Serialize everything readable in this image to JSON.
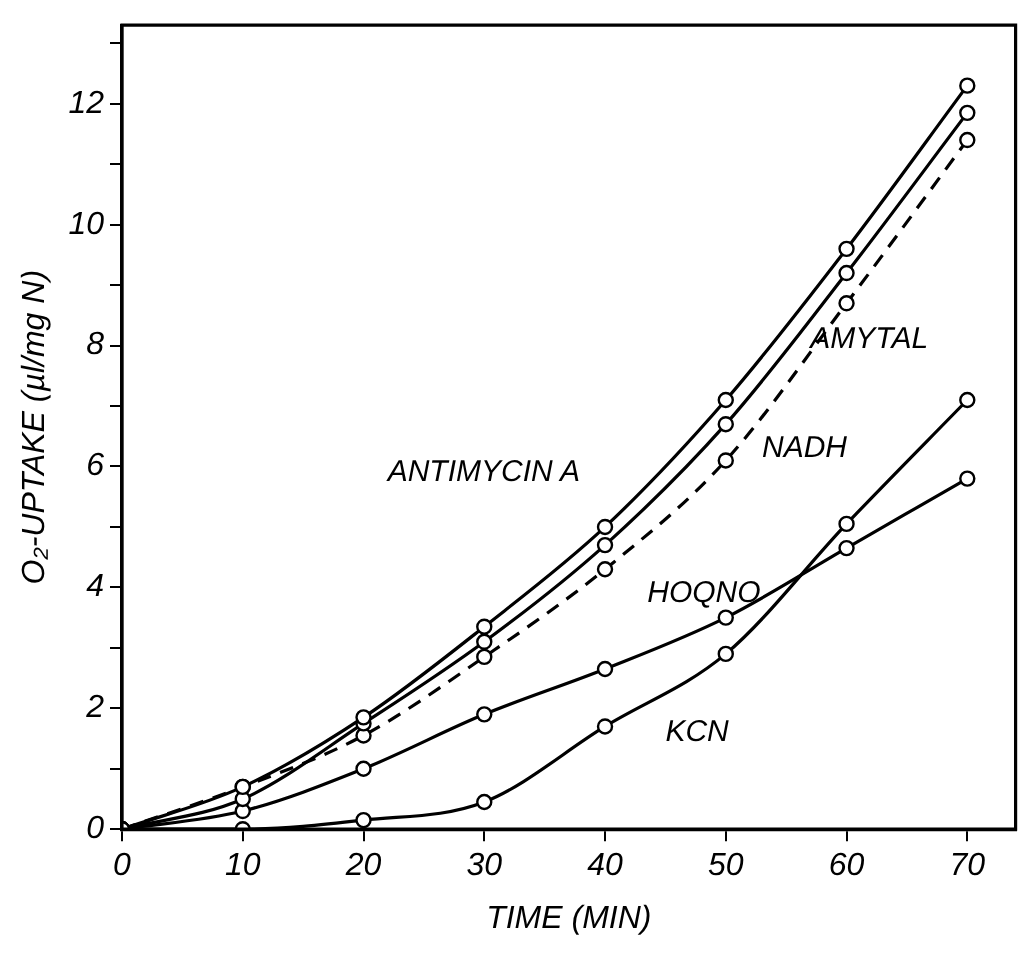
{
  "chart_data": {
    "type": "line",
    "xlabel": "TIME (MIN)",
    "ylabel": "O₂-UPTAKE (µl/mg N)",
    "x": [
      0,
      10,
      20,
      30,
      40,
      50,
      60,
      70
    ],
    "series": [
      {
        "name": "ANTIMYCIN A",
        "color": "#000000",
        "values": [
          0,
          0.7,
          1.85,
          3.35,
          5.0,
          7.1,
          9.6,
          12.3
        ]
      },
      {
        "name": "AMYTAL",
        "color": "#000000",
        "values": [
          0,
          0.5,
          1.75,
          3.1,
          4.7,
          6.7,
          9.2,
          11.85
        ]
      },
      {
        "name": "NADH",
        "color": "#000000",
        "values": [
          0,
          0.7,
          1.55,
          2.85,
          4.3,
          6.1,
          8.7,
          11.4
        ],
        "line_style": "dashed"
      },
      {
        "name": "HOQNO",
        "color": "#000000",
        "values": [
          0,
          0.3,
          1.0,
          1.9,
          2.65,
          3.5,
          4.65,
          5.8
        ]
      },
      {
        "name": "KCN",
        "color": "#000000",
        "values": [
          0,
          0,
          0.15,
          0.45,
          1.7,
          2.9,
          5.05,
          7.1
        ]
      }
    ],
    "xlim": [
      0,
      74
    ],
    "xticks": [
      0,
      10,
      20,
      30,
      40,
      50,
      60,
      70
    ],
    "ylim": [
      0,
      13.3
    ],
    "yticks": [
      0,
      {
        "value": 1,
        "label": null
      },
      2,
      {
        "value": 3,
        "label": null
      },
      4,
      {
        "value": 5,
        "label": null
      },
      6,
      {
        "value": 7,
        "label": null
      },
      8,
      {
        "value": 9,
        "label": null
      },
      10,
      {
        "value": 11,
        "label": null
      },
      12,
      {
        "value": 13,
        "label": null
      }
    ],
    "marker": "circle",
    "line_style": "solid",
    "grid": false,
    "legend": false
  }
}
